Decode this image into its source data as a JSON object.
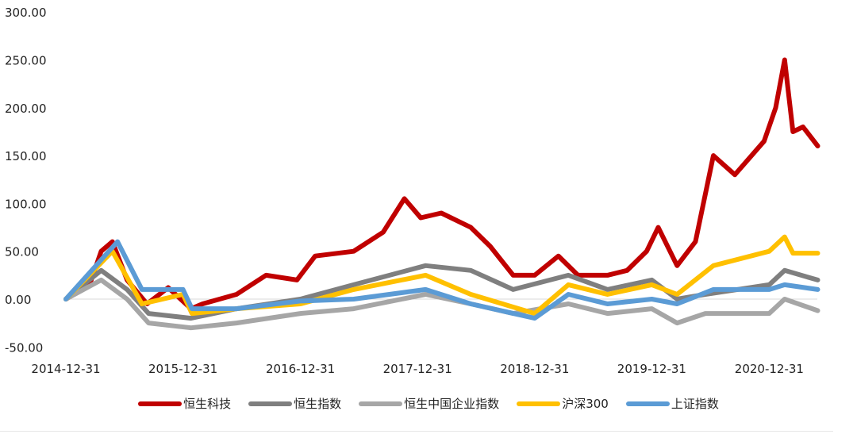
{
  "chart_data": {
    "type": "line",
    "title": "",
    "xlabel": "",
    "ylabel": "",
    "ylim": [
      -50,
      300
    ],
    "y_ticks": [
      "300.00",
      "250.00",
      "200.00",
      "150.00",
      "100.00",
      "50.00",
      "0.00",
      "-50.00"
    ],
    "x_ticks": [
      "2014-12-31",
      "2015-12-31",
      "2016-12-31",
      "2017-12-31",
      "2018-12-31",
      "2019-12-31",
      "2020-12-31"
    ],
    "xlim": [
      "2014-12-31",
      "2021-05-31"
    ],
    "grid": false,
    "legend_position": "bottom",
    "series": [
      {
        "name": "恒生科技",
        "color": "#c00000",
        "points": [
          [
            "2014-12-31",
            0
          ],
          [
            "2015-03-15",
            15
          ],
          [
            "2015-04-20",
            50
          ],
          [
            "2015-05-25",
            60
          ],
          [
            "2015-07-10",
            20
          ],
          [
            "2015-09-10",
            -5
          ],
          [
            "2015-11-15",
            12
          ],
          [
            "2016-01-25",
            -10
          ],
          [
            "2016-03-01",
            -5
          ],
          [
            "2016-06-15",
            5
          ],
          [
            "2016-09-15",
            25
          ],
          [
            "2016-12-20",
            20
          ],
          [
            "2017-02-15",
            45
          ],
          [
            "2017-06-15",
            50
          ],
          [
            "2017-09-15",
            70
          ],
          [
            "2017-11-20",
            105
          ],
          [
            "2018-01-10",
            85
          ],
          [
            "2018-03-15",
            90
          ],
          [
            "2018-06-15",
            75
          ],
          [
            "2018-08-15",
            55
          ],
          [
            "2018-10-25",
            25
          ],
          [
            "2018-12-31",
            25
          ],
          [
            "2019-03-15",
            45
          ],
          [
            "2019-05-15",
            25
          ],
          [
            "2019-08-15",
            25
          ],
          [
            "2019-10-15",
            30
          ],
          [
            "2019-12-15",
            50
          ],
          [
            "2020-01-20",
            75
          ],
          [
            "2020-03-19",
            35
          ],
          [
            "2020-05-15",
            60
          ],
          [
            "2020-07-10",
            150
          ],
          [
            "2020-09-15",
            130
          ],
          [
            "2020-12-15",
            165
          ],
          [
            "2021-01-20",
            200
          ],
          [
            "2021-02-17",
            250
          ],
          [
            "2021-03-15",
            175
          ],
          [
            "2021-04-15",
            180
          ],
          [
            "2021-05-31",
            160
          ]
        ]
      },
      {
        "name": "恒生指数",
        "color": "#7f7f7f",
        "points": [
          [
            "2014-12-31",
            0
          ],
          [
            "2015-04-20",
            30
          ],
          [
            "2015-07-10",
            10
          ],
          [
            "2015-09-15",
            -15
          ],
          [
            "2016-01-25",
            -20
          ],
          [
            "2016-06-15",
            -10
          ],
          [
            "2016-12-31",
            0
          ],
          [
            "2017-06-15",
            15
          ],
          [
            "2018-01-25",
            35
          ],
          [
            "2018-06-15",
            30
          ],
          [
            "2018-10-25",
            10
          ],
          [
            "2019-04-15",
            25
          ],
          [
            "2019-08-15",
            10
          ],
          [
            "2019-12-31",
            20
          ],
          [
            "2020-03-19",
            0
          ],
          [
            "2020-06-15",
            5
          ],
          [
            "2020-12-31",
            15
          ],
          [
            "2021-02-17",
            30
          ],
          [
            "2021-05-31",
            20
          ]
        ]
      },
      {
        "name": "恒生中国企业指数",
        "color": "#a6a6a6",
        "points": [
          [
            "2014-12-31",
            0
          ],
          [
            "2015-04-20",
            20
          ],
          [
            "2015-07-10",
            0
          ],
          [
            "2015-09-15",
            -25
          ],
          [
            "2016-01-25",
            -30
          ],
          [
            "2016-06-15",
            -25
          ],
          [
            "2016-12-31",
            -15
          ],
          [
            "2017-06-15",
            -10
          ],
          [
            "2018-01-25",
            5
          ],
          [
            "2018-06-15",
            -5
          ],
          [
            "2018-10-25",
            -15
          ],
          [
            "2019-04-15",
            -5
          ],
          [
            "2019-08-15",
            -15
          ],
          [
            "2019-12-31",
            -10
          ],
          [
            "2020-03-19",
            -25
          ],
          [
            "2020-06-15",
            -15
          ],
          [
            "2020-12-31",
            -15
          ],
          [
            "2021-02-17",
            0
          ],
          [
            "2021-05-31",
            -12
          ]
        ]
      },
      {
        "name": "沪深300",
        "color": "#ffc000",
        "points": [
          [
            "2014-12-31",
            0
          ],
          [
            "2015-05-25",
            50
          ],
          [
            "2015-08-25",
            -5
          ],
          [
            "2015-12-31",
            5
          ],
          [
            "2016-01-28",
            -15
          ],
          [
            "2016-06-15",
            -10
          ],
          [
            "2016-12-31",
            -5
          ],
          [
            "2017-06-15",
            10
          ],
          [
            "2018-01-25",
            25
          ],
          [
            "2018-06-15",
            5
          ],
          [
            "2018-12-31",
            -15
          ],
          [
            "2019-04-15",
            15
          ],
          [
            "2019-08-15",
            5
          ],
          [
            "2019-12-31",
            15
          ],
          [
            "2020-03-19",
            5
          ],
          [
            "2020-07-10",
            35
          ],
          [
            "2020-12-31",
            50
          ],
          [
            "2021-02-17",
            65
          ],
          [
            "2021-03-15",
            48
          ],
          [
            "2021-05-31",
            48
          ]
        ]
      },
      {
        "name": "上证指数",
        "color": "#5b9bd5",
        "points": [
          [
            "2014-12-31",
            0
          ],
          [
            "2015-06-10",
            60
          ],
          [
            "2015-08-25",
            10
          ],
          [
            "2015-12-31",
            10
          ],
          [
            "2016-01-28",
            -10
          ],
          [
            "2016-06-15",
            -10
          ],
          [
            "2016-12-31",
            -2
          ],
          [
            "2017-06-15",
            0
          ],
          [
            "2018-01-25",
            10
          ],
          [
            "2018-06-15",
            -5
          ],
          [
            "2018-12-31",
            -20
          ],
          [
            "2019-04-15",
            5
          ],
          [
            "2019-08-15",
            -5
          ],
          [
            "2019-12-31",
            0
          ],
          [
            "2020-03-19",
            -5
          ],
          [
            "2020-07-10",
            10
          ],
          [
            "2020-12-31",
            10
          ],
          [
            "2021-02-17",
            15
          ],
          [
            "2021-05-31",
            10
          ]
        ]
      }
    ]
  }
}
